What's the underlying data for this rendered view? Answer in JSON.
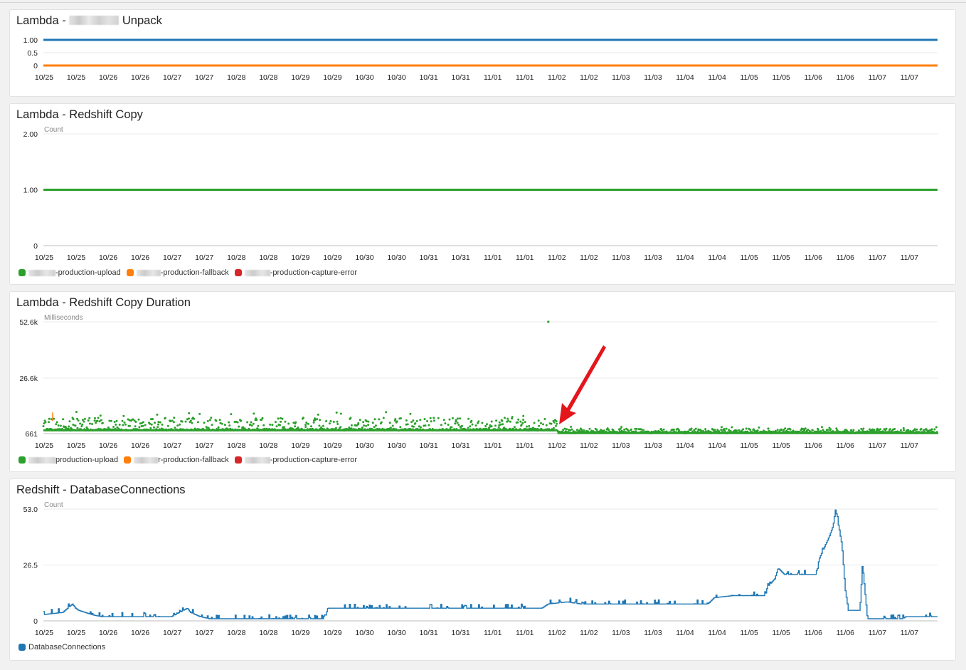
{
  "colors": {
    "upload": "#2ca02c",
    "fallback": "#ff7f0e",
    "capture_error": "#d62728",
    "connections": "#1f77b4",
    "grid": "#e8e8e8",
    "arrow": "#e3161c"
  },
  "x_tick_labels": [
    "10/25",
    "10/25",
    "10/26",
    "10/26",
    "10/27",
    "10/27",
    "10/28",
    "10/28",
    "10/29",
    "10/29",
    "10/30",
    "10/30",
    "10/31",
    "10/31",
    "11/01",
    "11/01",
    "11/02",
    "11/02",
    "11/03",
    "11/03",
    "11/04",
    "11/04",
    "11/05",
    "11/05",
    "11/06",
    "11/06",
    "11/07",
    "11/07"
  ],
  "panels": [
    {
      "title_prefix": "Lambda - ",
      "title_suffix": " Unpack",
      "unit": "",
      "legend": []
    },
    {
      "title": "Lambda - Redshift Copy",
      "unit": "Count",
      "legend": [
        {
          "label": "-production-upload",
          "color_key": "upload",
          "blur_width": 38
        },
        {
          "label": "-production-fallback",
          "color_key": "fallback",
          "blur_width": 34
        },
        {
          "label": "-production-capture-error",
          "color_key": "capture_error",
          "blur_width": 36
        }
      ]
    },
    {
      "title": "Lambda - Redshift Copy Duration",
      "unit": "Milliseconds",
      "legend": [
        {
          "label": "production-upload",
          "color_key": "upload",
          "blur_width": 38
        },
        {
          "label": "r-production-fallback",
          "color_key": "fallback",
          "blur_width": 34
        },
        {
          "label": "-production-capture-error",
          "color_key": "capture_error",
          "blur_width": 36
        }
      ]
    },
    {
      "title": "Redshift - DatabaseConnections",
      "unit": "Count",
      "legend": [
        {
          "label": "DatabaseConnections",
          "color_key": "connections",
          "blur_width": 0
        }
      ]
    }
  ],
  "chart_data": [
    {
      "type": "line",
      "title": "Lambda - [redacted] Unpack",
      "x_range": [
        "10/25",
        "11/07"
      ],
      "y_tick_labels": [
        "1.00",
        "0.5",
        "0"
      ],
      "ylim": [
        0,
        1
      ],
      "series": [
        {
          "color": "#1f77b4",
          "values": [
            1,
            1
          ]
        },
        {
          "color": "#ff7f0e",
          "values": [
            0,
            0
          ]
        }
      ]
    },
    {
      "type": "line",
      "title": "Lambda - Redshift Copy",
      "ylabel": "Count",
      "x_range": [
        "10/25",
        "11/07"
      ],
      "y_tick_labels": [
        "2.00",
        "1.00",
        "0"
      ],
      "ylim": [
        0,
        2
      ],
      "series": [
        {
          "name": "-production-upload",
          "values": [
            1,
            1
          ]
        }
      ],
      "legend_position": "bottom-left"
    },
    {
      "type": "scatter",
      "title": "Lambda - Redshift Copy Duration",
      "ylabel": "Milliseconds",
      "x_range": [
        "10/25",
        "11/07"
      ],
      "y_tick_labels": [
        "52.6k",
        "26.6k",
        "661"
      ],
      "ylim": [
        661,
        52600
      ],
      "series": [
        {
          "name": "production-upload",
          "points_summary": {
            "baseline_before_1102": 2500,
            "upper_band_before_1102": 8000,
            "baseline_after_1102": 1200,
            "upper_band_after_1102": 3000,
            "outlier": {
              "x": "11/02",
              "y": 52600
            }
          }
        },
        {
          "name": "r-production-fallback",
          "points": [
            {
              "x": "10/25",
              "y": 8500
            }
          ]
        }
      ],
      "annotation": "red arrow pointing at 11/02",
      "legend_position": "bottom-left"
    },
    {
      "type": "line",
      "title": "Redshift - DatabaseConnections",
      "ylabel": "Count",
      "x_range": [
        "10/25",
        "11/07"
      ],
      "y_tick_labels": [
        "53.0",
        "26.5",
        "0"
      ],
      "ylim": [
        0,
        53
      ],
      "series": [
        {
          "name": "DatabaseConnections",
          "x_days": [
            0,
            0.3,
            0.45,
            0.5,
            0.55,
            0.75,
            0.9,
            1.0,
            1.8,
            2.0,
            2.25,
            2.3,
            2.45,
            2.6,
            3.0,
            3.5,
            4.0,
            4.4,
            4.45,
            5.5,
            6.5,
            7.0,
            7.8,
            7.9,
            8.2,
            8.4,
            8.7,
            9.0,
            9.5,
            10.0,
            10.4,
            10.5,
            10.8,
            11.0,
            11.3,
            11.33,
            11.45,
            11.5,
            11.6,
            11.75,
            12.0,
            12.1,
            12.15,
            12.3,
            12.36,
            12.4,
            12.5,
            12.55,
            12.6,
            12.65,
            12.7,
            12.78,
            12.82,
            12.9,
            13.0,
            13.1,
            13.35,
            13.45,
            13.5,
            13.6,
            13.9,
            14.0
          ],
          "values": [
            3,
            4,
            8,
            6,
            5,
            3,
            2,
            2,
            2,
            2,
            6,
            4,
            2,
            1,
            1,
            1,
            1,
            1,
            6,
            6,
            6,
            6,
            6,
            8,
            9,
            8,
            8,
            8,
            8,
            8,
            8,
            11,
            12,
            12,
            12,
            16,
            20,
            25,
            22,
            22,
            22,
            22,
            30,
            40,
            45,
            53,
            36,
            15,
            5,
            5,
            5,
            5,
            27,
            1,
            1,
            1,
            1,
            1,
            2,
            2,
            2,
            2
          ]
        }
      ],
      "legend_position": "bottom-left"
    }
  ]
}
